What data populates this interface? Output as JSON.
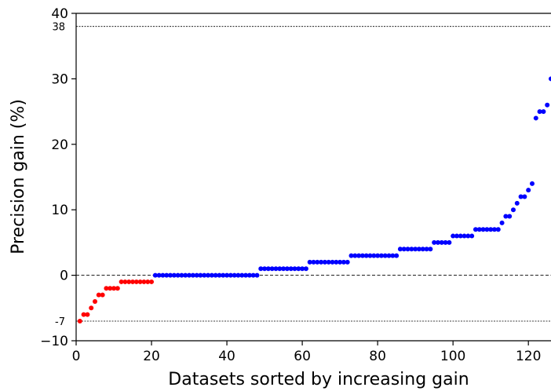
{
  "chart_data": {
    "type": "scatter",
    "xlabel": "Datasets sorted by increasing gain",
    "ylabel": "Precision gain (%)",
    "xlim": [
      0,
      126
    ],
    "ylim": [
      -10,
      40
    ],
    "x_ticks": [
      0,
      20,
      40,
      60,
      80,
      100,
      120
    ],
    "y_ticks": [
      -10,
      0,
      10,
      20,
      30,
      40
    ],
    "reference_lines": [
      {
        "y": 38,
        "label": "38",
        "style": "dotted"
      },
      {
        "y": 0,
        "label": "",
        "style": "dashed"
      },
      {
        "y": -7,
        "label": "-7",
        "style": "dotted"
      }
    ],
    "grid": false,
    "colors": {
      "negative": "#ff0000",
      "non_negative": "#0000ff"
    },
    "series": [
      {
        "color": "#ff0000",
        "x": [
          1,
          2,
          3,
          4,
          5,
          6,
          7,
          8,
          9,
          10,
          11,
          12,
          13,
          14,
          15,
          16,
          17,
          18,
          19,
          20
        ],
        "y": [
          -7,
          -6,
          -6,
          -5,
          -4,
          -3,
          -3,
          -2,
          -2,
          -2,
          -2,
          -1,
          -1,
          -1,
          -1,
          -1,
          -1,
          -1,
          -1,
          -1
        ]
      },
      {
        "color": "#0000ff",
        "x": [
          21,
          22,
          23,
          24,
          25,
          26,
          27,
          28,
          29,
          30,
          31,
          32,
          33,
          34,
          35,
          36,
          37,
          38,
          39,
          40,
          41,
          42,
          43,
          44,
          45,
          46,
          47,
          48,
          49,
          50,
          51,
          52,
          53,
          54,
          55,
          56,
          57,
          58,
          59,
          60,
          61,
          62,
          63,
          64,
          65,
          66,
          67,
          68,
          69,
          70,
          71,
          72,
          73,
          74,
          75,
          76,
          77,
          78,
          79,
          80,
          81,
          82,
          83,
          84,
          85,
          86,
          87,
          88,
          89,
          90,
          91,
          92,
          93,
          94,
          95,
          96,
          97,
          98,
          99,
          100,
          101,
          102,
          103,
          104,
          105,
          106,
          107,
          108,
          109,
          110,
          111,
          112,
          113,
          114,
          115,
          116,
          117,
          118,
          119,
          120,
          121,
          122,
          123,
          124,
          125,
          126
        ],
        "y": [
          0,
          0,
          0,
          0,
          0,
          0,
          0,
          0,
          0,
          0,
          0,
          0,
          0,
          0,
          0,
          0,
          0,
          0,
          0,
          0,
          0,
          0,
          0,
          0,
          0,
          0,
          0,
          0,
          1,
          1,
          1,
          1,
          1,
          1,
          1,
          1,
          1,
          1,
          1,
          1,
          1,
          2,
          2,
          2,
          2,
          2,
          2,
          2,
          2,
          2,
          2,
          2,
          3,
          3,
          3,
          3,
          3,
          3,
          3,
          3,
          3,
          3,
          3,
          3,
          3,
          4,
          4,
          4,
          4,
          4,
          4,
          4,
          4,
          4,
          5,
          5,
          5,
          5,
          5,
          6,
          6,
          6,
          6,
          6,
          6,
          7,
          7,
          7,
          7,
          7,
          7,
          7,
          8,
          9,
          9,
          10,
          11,
          12,
          12,
          13,
          14,
          24,
          25,
          25,
          26,
          30
        ]
      }
    ]
  }
}
